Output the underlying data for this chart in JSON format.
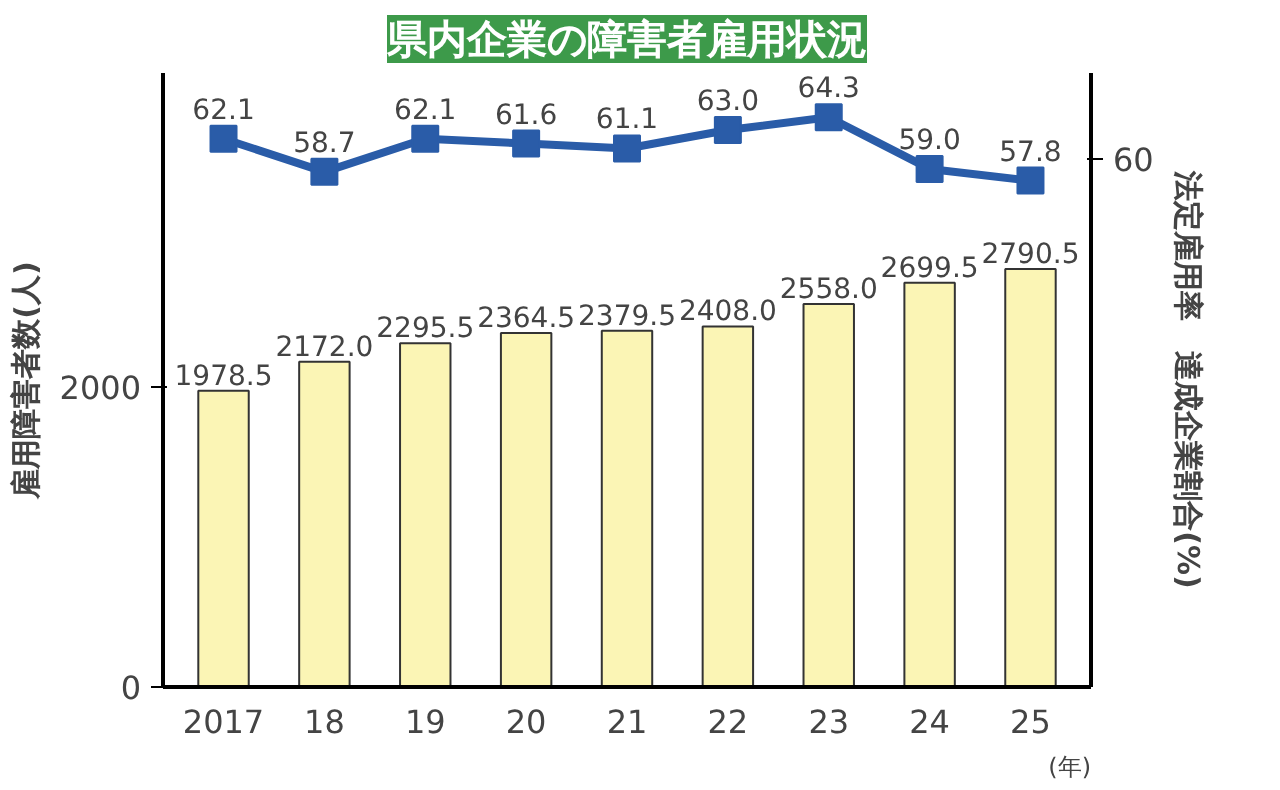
{
  "chart_data": {
    "type": "bar",
    "title": "県内企業の障害者雇用状況",
    "categories": [
      "2017",
      "18",
      "19",
      "20",
      "21",
      "22",
      "23",
      "24",
      "25"
    ],
    "xlabel": "(年)",
    "ylabel": "雇用障害者数(人)",
    "y2label": "法定雇用率　達成企業割合(%)",
    "series": [
      {
        "name": null,
        "color": "#fbf5b5",
        "values": [
          1978.5,
          2172,
          2295.5,
          2364.5,
          2379.5,
          2408,
          2558,
          2699.5,
          2790.5
        ],
        "value_labels": [
          "1978.5",
          "2172.0",
          "2295.5",
          "2364.5",
          "2379.5",
          "2408.0",
          "2558.0",
          "2699.5",
          "2790.5"
        ]
      },
      {
        "name": null,
        "type": "line",
        "axis": "y2",
        "color": "#2a5ca8",
        "marker": "square",
        "values": [
          62.1,
          58.7,
          62.1,
          61.6,
          61.1,
          63,
          64.3,
          59,
          57.8
        ],
        "value_labels": [
          "62.1",
          "58.7",
          "62.1",
          "61.6",
          "61.1",
          "63.0",
          "64.3",
          "59.0",
          "57.8"
        ]
      }
    ],
    "annotations": [
      "60"
    ],
    "ylim": [
      0,
      4100
    ],
    "yticks": [
      0,
      2000
    ],
    "line_style": "solid"
  }
}
